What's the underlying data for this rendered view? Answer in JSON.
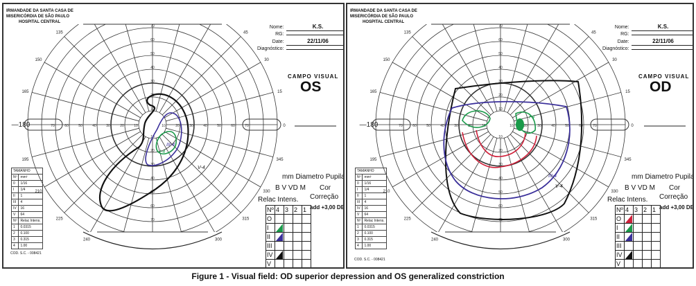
{
  "panels": [
    {
      "id": "left",
      "institution": [
        "IRMANDADE DA SANTA CASA DE",
        "MISERICÓRDIA DE SÃO PAULO",
        "HOSPITAL CENTRAL"
      ],
      "form": {
        "name_label": "Nome:",
        "name_value": "K.S.",
        "rg_label": "RG:",
        "date_label": "Date:",
        "date_value": "22/11/06",
        "diagnosis_label": "Diagnóstico:"
      },
      "title": "CAMPO VISUAL",
      "eye": "OS",
      "pupil_label": "mm Diametro Pupila",
      "stimulus_letters": "B  V  VD  M",
      "color_label": "Cor",
      "relac_label": "Relac  Intens.",
      "correction_label": "Correção",
      "addition": "add +3,00 DE",
      "isopter_labels": [
        "V-4",
        "III-4",
        "I-4"
      ],
      "code": "COD. S.C. - 008421"
    },
    {
      "id": "right",
      "institution": [
        "IRMANDADE DA SANTA CASA DE",
        "MISERICÓRDIA DE SÃO PAULO",
        "HOSPITAL CENTRAL"
      ],
      "form": {
        "name_label": "Nome:",
        "name_value": "K.S.",
        "rg_label": "RG:",
        "date_label": "Date:",
        "date_value": "22/11/06",
        "diagnosis_label": "Diagnóstico:"
      },
      "title": "CAMPO VISUAL",
      "eye": "OD",
      "pupil_label": "mm Diametro Pupila",
      "stimulus_letters": "B  V  VD  M",
      "color_label": "Cor",
      "relac_label": "Relac  Intens.",
      "correction_label": "Correção",
      "addition": "add +3,00 DE",
      "isopter_labels": [
        "V-4",
        "III-4",
        "I-4"
      ],
      "code": "COD. S.C. - 008421"
    }
  ],
  "angle_labels": [
    "0",
    "15",
    "30",
    "45",
    "60",
    "75",
    "90",
    "105",
    "120",
    "135",
    "150",
    "165",
    "180",
    "195",
    "210",
    "225",
    "240",
    "255",
    "270",
    "285",
    "300",
    "315",
    "330",
    "345"
  ],
  "ring_labels": [
    "10",
    "20",
    "30",
    "40",
    "50",
    "60",
    "70",
    "80",
    "90"
  ],
  "intensity_table": {
    "header": [
      "Nº",
      "4",
      "3",
      "2",
      "1"
    ],
    "rows": [
      "O",
      "I",
      "II",
      "III",
      "IV",
      "V"
    ]
  },
  "size_table": {
    "title": "TAMANHO",
    "header": [
      "Nº",
      "mm²"
    ],
    "sizes": [
      [
        "0",
        "1/16"
      ],
      [
        "I",
        "1/4"
      ],
      [
        "II",
        "1"
      ],
      [
        "III",
        "4"
      ],
      [
        "IV",
        "16"
      ],
      [
        "V",
        "64"
      ]
    ],
    "intens_header": [
      "Nº",
      "Relac Intens."
    ],
    "intens": [
      [
        "1",
        "0.0315"
      ],
      [
        "2",
        "0.100"
      ],
      [
        "3",
        "0.315"
      ],
      [
        "4",
        "1.00"
      ]
    ]
  },
  "colors": {
    "V-4": "#111111",
    "III-4": "#3a2f9a",
    "I-4": "#1a9a4a",
    "red": "#d0203a"
  },
  "caption": "Figure 1 - Visual field: OD superior depression and OS generalized constriction"
}
